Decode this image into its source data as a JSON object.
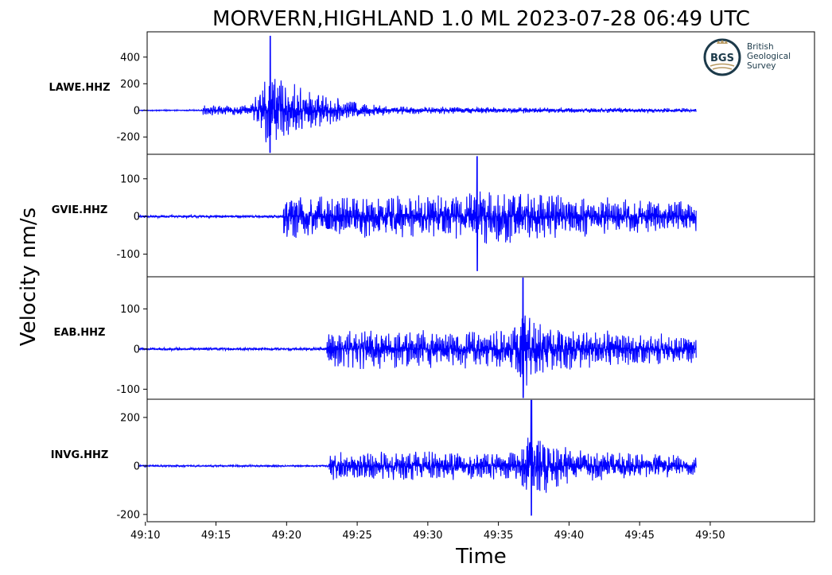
{
  "chart_data": {
    "type": "line",
    "title": "MORVERN,HIGHLAND 1.0 ML   2023-07-28 06:49 UTC",
    "xlabel": "Time",
    "ylabel": "Velocity nm/s",
    "x_ticks": [
      "49:10",
      "49:15",
      "49:20",
      "49:25",
      "49:30",
      "49:35",
      "49:40",
      "49:45",
      "49:50"
    ],
    "xlim_seconds": [
      67.5,
      2903
    ],
    "trace_time_range_seconds": [
      30,
      2400
    ],
    "time_units": "mm:ss",
    "line_color": "#0000ff",
    "grid": false,
    "series": [
      {
        "name": "LAWE.HHZ",
        "ylim": [
          -330,
          590
        ],
        "yticks": [
          400,
          200,
          0,
          -200
        ],
        "noise_level": 4,
        "onset_time": 305,
        "peak_time": 590,
        "peak_max": 560,
        "peak_min": -320,
        "coda_level": 40,
        "decay_seconds": 700
      },
      {
        "name": "GVIE.HHZ",
        "ylim": [
          -160,
          165
        ],
        "yticks": [
          100,
          0,
          -100
        ],
        "noise_level": 4,
        "onset_time": 645,
        "peak_time": 1470,
        "peak_max": 160,
        "peak_min": -145,
        "coda_level": 60,
        "decay_seconds": 800
      },
      {
        "name": "EAB.HHZ",
        "ylim": [
          -125,
          180
        ],
        "yticks": [
          100,
          0,
          -100
        ],
        "noise_level": 4,
        "onset_time": 830,
        "peak_time": 1665,
        "peak_max": 178,
        "peak_min": -122,
        "coda_level": 50,
        "decay_seconds": 700
      },
      {
        "name": "INVG.HHZ",
        "ylim": [
          -230,
          275
        ],
        "yticks": [
          200,
          0,
          -200
        ],
        "noise_level": 4,
        "onset_time": 840,
        "peak_time": 1700,
        "peak_max": 272,
        "peak_min": -205,
        "coda_level": 60,
        "decay_seconds": 700
      }
    ]
  },
  "logo": {
    "abbrev": "BGS",
    "line1": "British",
    "line2": "Geological",
    "line3": "Survey",
    "ring_color": "#1c3a4a",
    "accent_color": "#b89a62"
  }
}
